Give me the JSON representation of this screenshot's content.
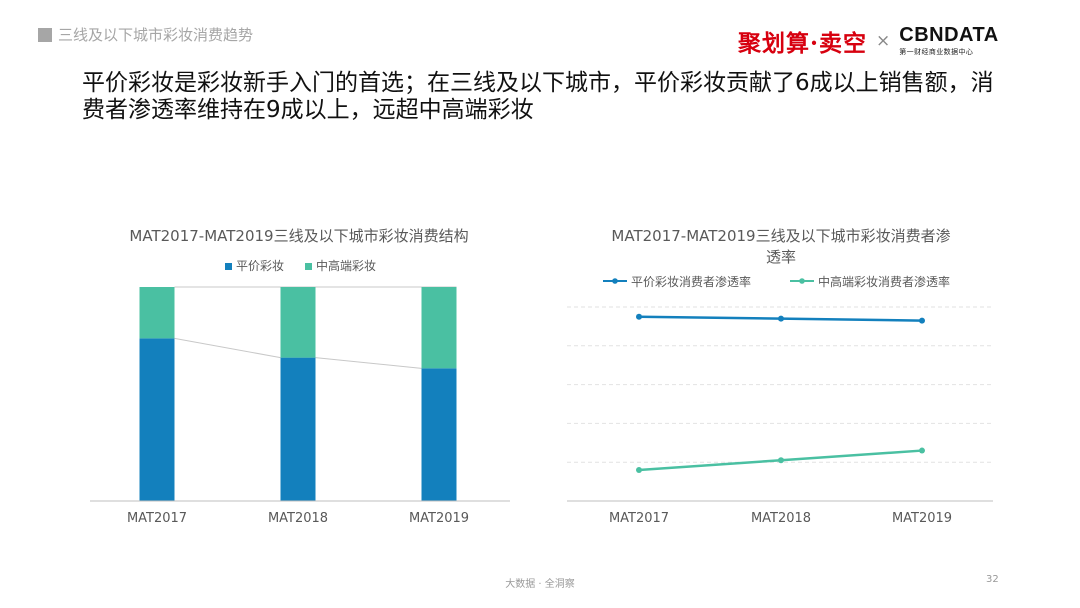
{
  "section": {
    "label": "三线及以下城市彩妆消费趋势"
  },
  "logos": {
    "juhuasuan": "聚划算·卖空",
    "cross": "×",
    "cbndata": "CBNDATA",
    "cbndata_sub": "第一财经商业数据中心"
  },
  "headline": "平价彩妆是彩妆新手入门的首选；在三线及以下城市，平价彩妆贡献了6成以上销售额，消费者渗透率维持在9成以上，远超中高端彩妆",
  "footer": {
    "text": "大数据 · 全洞察",
    "page": "32"
  },
  "colors": {
    "affordable": "#1380bd",
    "premium": "#4ac0a2",
    "connector": "#c8c8c8",
    "grid": "#e2e2e2",
    "axis": "#bfbfbf"
  },
  "chart_data": [
    {
      "type": "bar",
      "stacked": true,
      "title": "MAT2017-MAT2019三线及以下城市彩妆消费结构",
      "categories": [
        "MAT2017",
        "MAT2018",
        "MAT2019"
      ],
      "series": [
        {
          "name": "平价彩妆",
          "values": [
            0.76,
            0.67,
            0.62
          ]
        },
        {
          "name": "中高端彩妆",
          "values": [
            0.24,
            0.33,
            0.38
          ]
        }
      ],
      "ylim": [
        0,
        1
      ],
      "legend": "top-center",
      "grid": false
    },
    {
      "type": "line",
      "title": "MAT2017-MAT2019三线及以下城市彩妆消费者渗透率",
      "categories": [
        "MAT2017",
        "MAT2018",
        "MAT2019"
      ],
      "series": [
        {
          "name": "平价彩妆消费者渗透率",
          "values": [
            0.95,
            0.94,
            0.93
          ]
        },
        {
          "name": "中高端彩妆消费者渗透率",
          "values": [
            0.16,
            0.21,
            0.26
          ]
        }
      ],
      "ylim": [
        0,
        1
      ],
      "legend": "top-center",
      "grid": true
    }
  ]
}
